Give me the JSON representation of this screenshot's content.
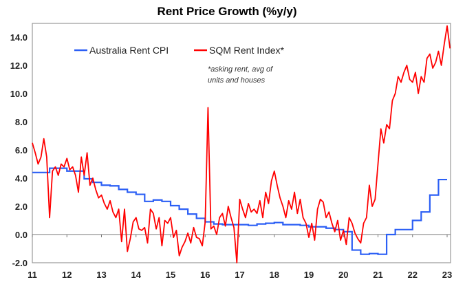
{
  "chart_data": {
    "type": "line",
    "title": "Rent Price Growth (%y/y)",
    "xlabel": "",
    "ylabel": "",
    "xlim": [
      2011,
      2023.1
    ],
    "ylim": [
      -2,
      15
    ],
    "x_ticks": [
      "11",
      "12",
      "13",
      "14",
      "15",
      "16",
      "17",
      "18",
      "19",
      "20",
      "21",
      "22",
      "23"
    ],
    "y_ticks": [
      "-2.0",
      "0.0",
      "2.0",
      "4.0",
      "6.0",
      "8.0",
      "10.0",
      "12.0",
      "14.0"
    ],
    "legend_placement": "top-left",
    "annotation": [
      "*asking rent, avg of",
      "units and houses"
    ],
    "series": [
      {
        "name": "Australia Rent CPI",
        "color": "#2b5ff5",
        "step": true,
        "x": [
          2011.0,
          2011.5,
          2012.0,
          2012.5,
          2012.75,
          2013.0,
          2013.25,
          2013.5,
          2013.75,
          2014.0,
          2014.25,
          2014.5,
          2014.75,
          2015.0,
          2015.25,
          2015.5,
          2015.75,
          2016.0,
          2016.25,
          2016.5,
          2016.75,
          2017.0,
          2017.25,
          2017.5,
          2017.75,
          2018.0,
          2018.25,
          2018.5,
          2018.75,
          2019.0,
          2019.25,
          2019.5,
          2019.75,
          2020.0,
          2020.25,
          2020.5,
          2020.75,
          2021.0,
          2021.25,
          2021.5,
          2021.75,
          2022.0,
          2022.25,
          2022.5,
          2022.75,
          2023.0
        ],
        "values": [
          4.4,
          4.7,
          4.5,
          3.95,
          3.7,
          3.5,
          3.45,
          3.2,
          3.0,
          2.85,
          2.35,
          2.45,
          2.35,
          2.05,
          1.8,
          1.45,
          1.15,
          0.9,
          0.75,
          0.7,
          0.7,
          0.7,
          0.65,
          0.75,
          0.8,
          0.85,
          0.7,
          0.7,
          0.65,
          0.55,
          0.55,
          0.45,
          0.35,
          0.2,
          -1.1,
          -1.4,
          -1.35,
          -1.4,
          0.0,
          0.35,
          0.35,
          1.0,
          1.6,
          2.8,
          3.9,
          3.9
        ]
      },
      {
        "name": "SQM Rent Index*",
        "color": "#ff0000",
        "step": false,
        "start": 2011.0,
        "interval": "monthly",
        "values": [
          6.5,
          5.8,
          5.0,
          5.5,
          6.8,
          5.5,
          1.2,
          4.5,
          4.8,
          4.2,
          5.0,
          4.8,
          5.4,
          4.6,
          4.8,
          4.2,
          3.0,
          5.5,
          4.2,
          5.8,
          3.5,
          4.0,
          3.2,
          2.6,
          2.8,
          2.2,
          1.8,
          2.4,
          1.6,
          1.2,
          1.8,
          -0.5,
          1.8,
          -1.2,
          -0.3,
          0.9,
          1.2,
          0.4,
          0.3,
          0.5,
          -0.6,
          1.8,
          1.5,
          0.4,
          1.2,
          -0.8,
          1.0,
          0.8,
          1.2,
          -0.2,
          0.3,
          -1.5,
          -0.9,
          -0.5,
          0.1,
          -0.6,
          0.5,
          -0.2,
          -0.3,
          -0.8,
          0.9,
          9.0,
          0.4,
          0.6,
          0.0,
          1.2,
          1.5,
          0.6,
          2.0,
          1.2,
          0.5,
          -2.0,
          2.5,
          1.8,
          1.2,
          2.2,
          1.6,
          1.8,
          1.5,
          2.4,
          1.2,
          3.0,
          2.2,
          3.8,
          4.5,
          3.5,
          2.6,
          2.0,
          1.2,
          2.4,
          1.8,
          3.0,
          1.5,
          2.5,
          1.2,
          0.8,
          -0.2,
          0.8,
          -0.4,
          1.8,
          2.5,
          2.3,
          1.2,
          1.6,
          0.8,
          0.2,
          1.0,
          -0.4,
          0.3,
          -0.7,
          1.2,
          0.8,
          0.1,
          -0.3,
          -0.6,
          0.8,
          1.2,
          3.5,
          2.0,
          2.5,
          5.0,
          7.5,
          6.5,
          7.8,
          7.5,
          9.5,
          10.0,
          11.2,
          10.8,
          11.5,
          12.0,
          11.0,
          10.8,
          11.5,
          10.0,
          11.2,
          10.8,
          12.5,
          12.8,
          11.8,
          12.2,
          13.0,
          12.0,
          13.5,
          14.8,
          13.2
        ]
      }
    ]
  }
}
